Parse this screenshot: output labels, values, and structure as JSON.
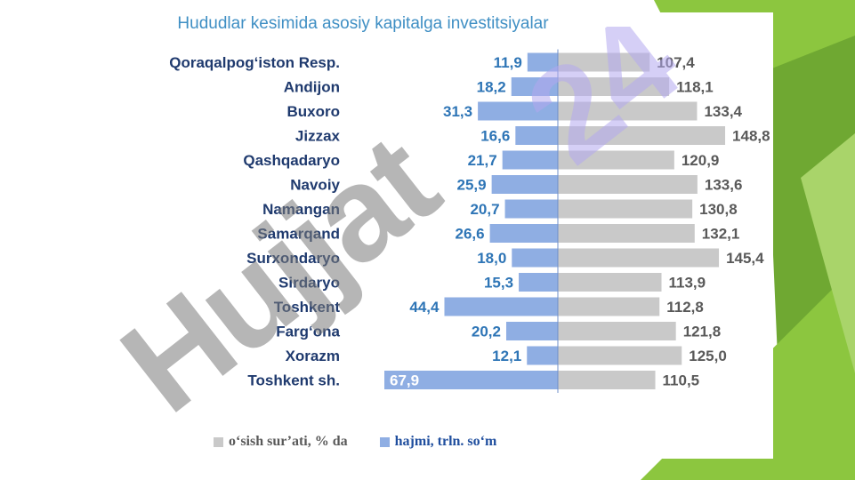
{
  "title": "Hududlar kesimida asosiy kapitalga investitsiyalar",
  "legend": {
    "growth_label": "o‘sish sur’ati, % da",
    "volume_label": "hajmi, trln. so‘m"
  },
  "watermark": "Hujjat24",
  "colors": {
    "growth_bar": "#c9c9c9",
    "volume_bar": "#8faee3",
    "growth_text": "#595959",
    "volume_text": "#2e75b6",
    "region_text": "#1f3a6e",
    "title": "#3f8fc4",
    "green_dark": "#6fa832",
    "green_light": "#8cc63f",
    "watermark_gray": "#7a7a7a",
    "watermark_violet": "#b3a8ef"
  },
  "chart_data": {
    "type": "bar",
    "orientation": "horizontal-diverging",
    "categories": [
      "Qoraqalpog‘iston Resp.",
      "Andijon",
      "Buxoro",
      "Jizzax",
      "Qashqadaryo",
      "Navoiy",
      "Namangan",
      "Samarqand",
      "Surxondaryo",
      "Sirdaryo",
      "Toshkent",
      "Farg‘ona",
      "Xorazm",
      "Toshkent sh."
    ],
    "series": [
      {
        "name": "hajmi, trln. so‘m",
        "direction": "left",
        "values": [
          11.9,
          18.2,
          31.3,
          16.6,
          21.7,
          25.9,
          20.7,
          26.6,
          18.0,
          15.3,
          44.4,
          20.2,
          12.1,
          67.9
        ],
        "labels": [
          "11,9",
          "18,2",
          "31,3",
          "16,6",
          "21,7",
          "25,9",
          "20,7",
          "26,6",
          "18,0",
          "15,3",
          "44,4",
          "20,2",
          "12,1",
          "67,9"
        ]
      },
      {
        "name": "o‘sish sur’ati, % da",
        "direction": "right",
        "values": [
          107.4,
          118.1,
          133.4,
          148.8,
          120.9,
          133.6,
          130.8,
          132.1,
          145.4,
          113.9,
          112.8,
          121.8,
          125.0,
          110.5
        ],
        "labels": [
          "107,4",
          "118,1",
          "133,4",
          "148,8",
          "120,9",
          "133,6",
          "130,8",
          "132,1",
          "145,4",
          "113,9",
          "112,8",
          "121,8",
          "125,0",
          "110,5"
        ]
      }
    ],
    "grid": false,
    "legend_position": "bottom"
  }
}
